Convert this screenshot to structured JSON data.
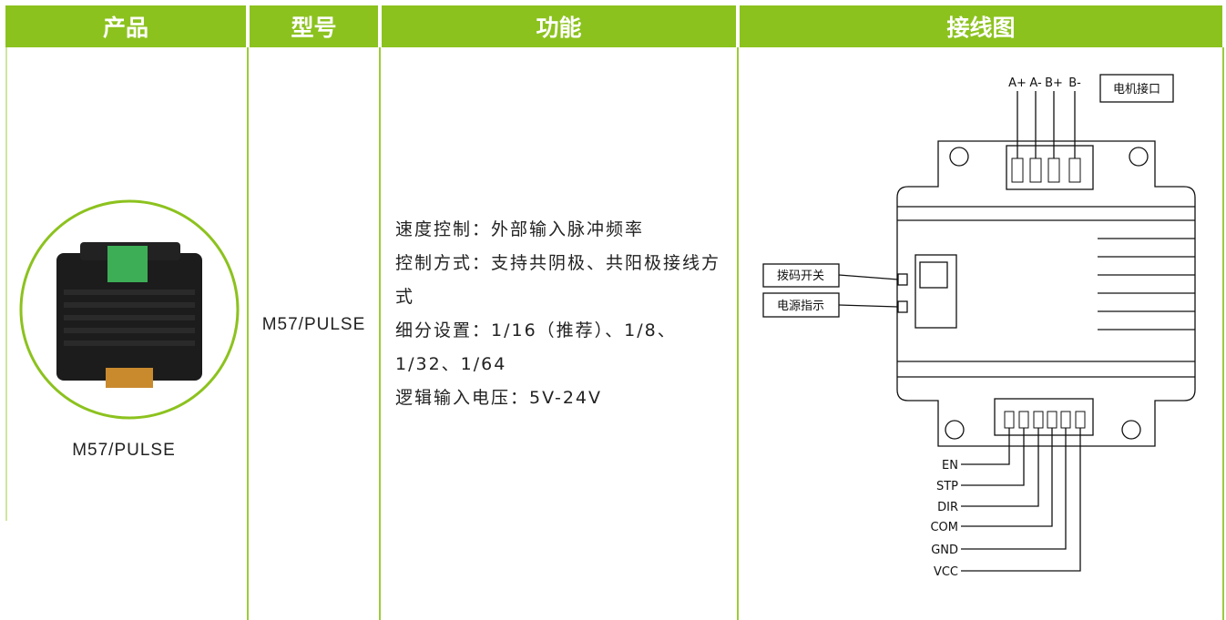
{
  "header": {
    "columns": [
      "产品",
      "型号",
      "功能",
      "接线图"
    ]
  },
  "row": {
    "product": "M57/PULSE",
    "model": "M57/PULSE",
    "features": [
      "速度控制：外部输入脉冲频率",
      "控制方式：支持共阴极、共阳极接线方式",
      "细分设置：1/16（推荐）、1/8、1/32、1/64",
      "逻辑输入电压：5V-24V"
    ],
    "diagram": {
      "motor_pins": [
        "A+",
        "A-",
        "B+",
        "B-"
      ],
      "motor_port": "电机接口",
      "dip_switch": "拨码开关",
      "power_indicator": "电源指示",
      "signal_pins": [
        "EN",
        "STP",
        "DIR",
        "COM",
        "GND",
        "VCC"
      ]
    }
  }
}
